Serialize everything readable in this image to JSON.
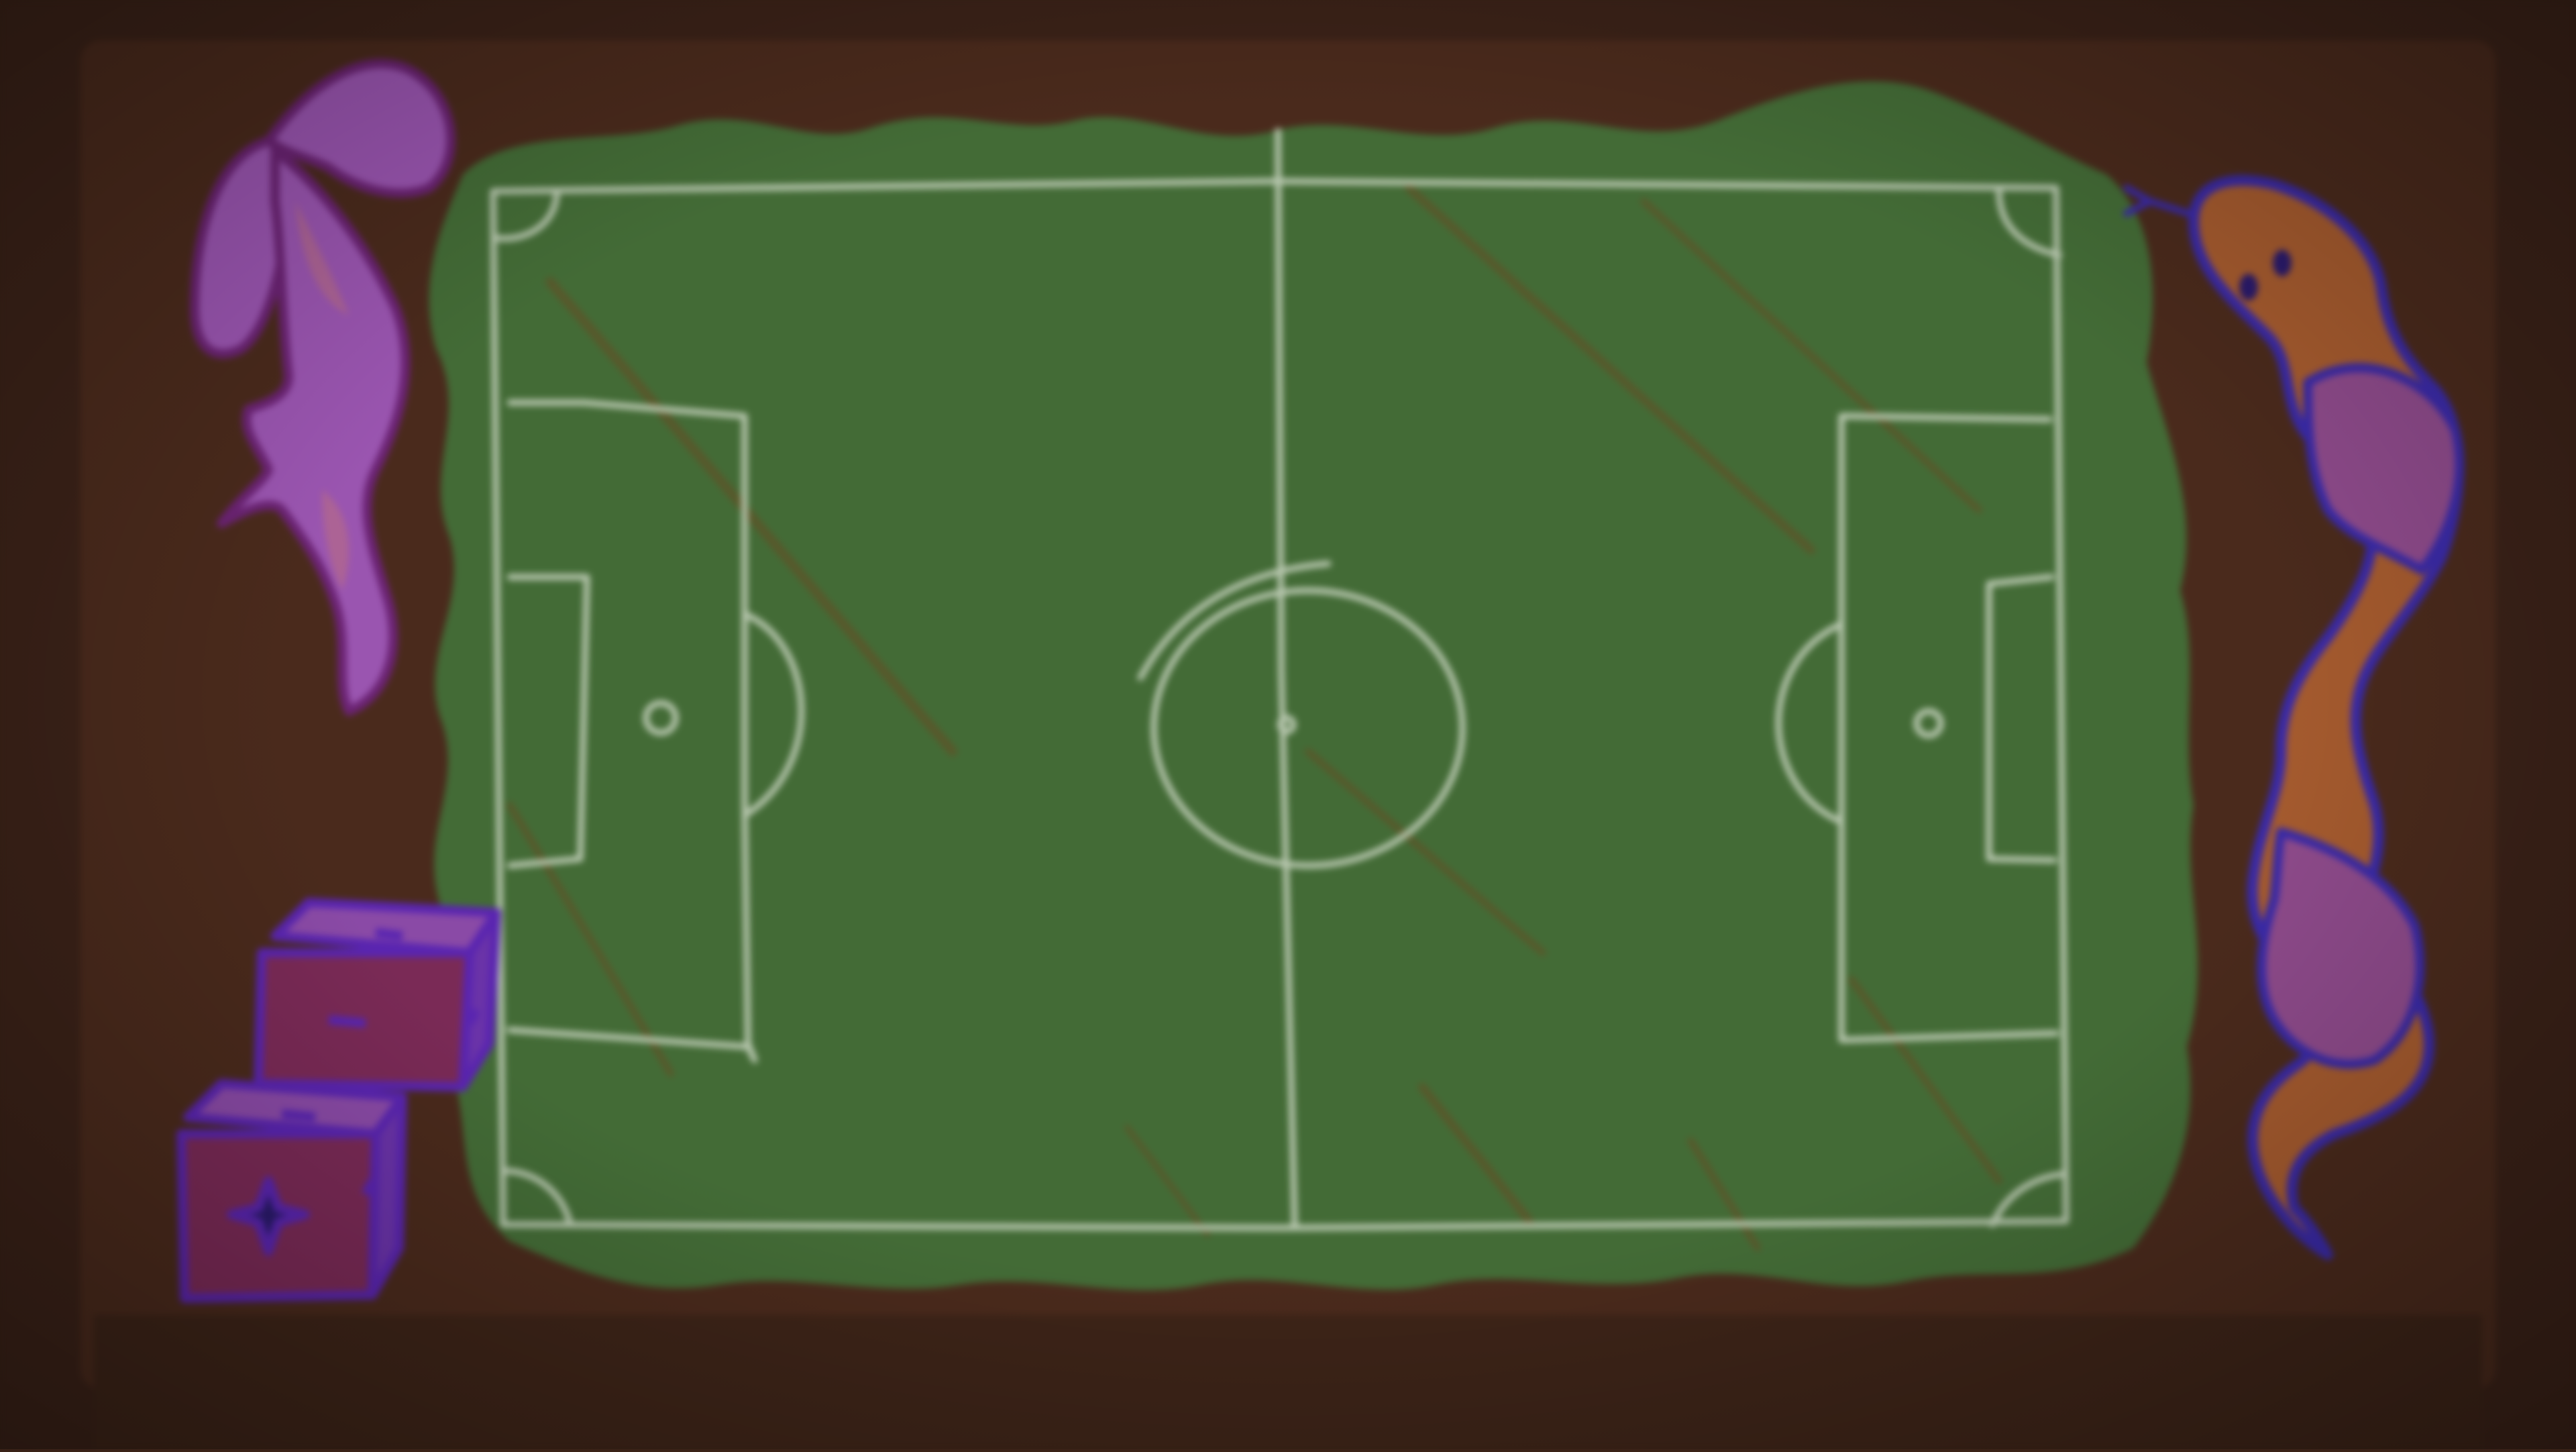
{
  "scene": {
    "board_color": "#4a2a1c",
    "board_edge_color": "#3b2218",
    "grass_color": "#436b36",
    "grass_dark_color": "#3a5f2f",
    "stripe_color": "#6b4a24",
    "chalk_color": "#b9c8b0",
    "ribbon_color": "#9a55b0",
    "ribbon_outline_color": "#6b2373",
    "snake_body_color": "#a45a2e",
    "snake_stripe_color": "#8d4a8a",
    "snake_outline_color": "#3a2aa6",
    "dice_color": "#7a2a56",
    "dice_side_color": "#6a33a8",
    "dice_outline_color": "#5a25b0"
  },
  "decorations": {
    "top_left": "ribbon-bow-icon",
    "right": "snake-icon",
    "bottom_left": "dice-icon"
  }
}
